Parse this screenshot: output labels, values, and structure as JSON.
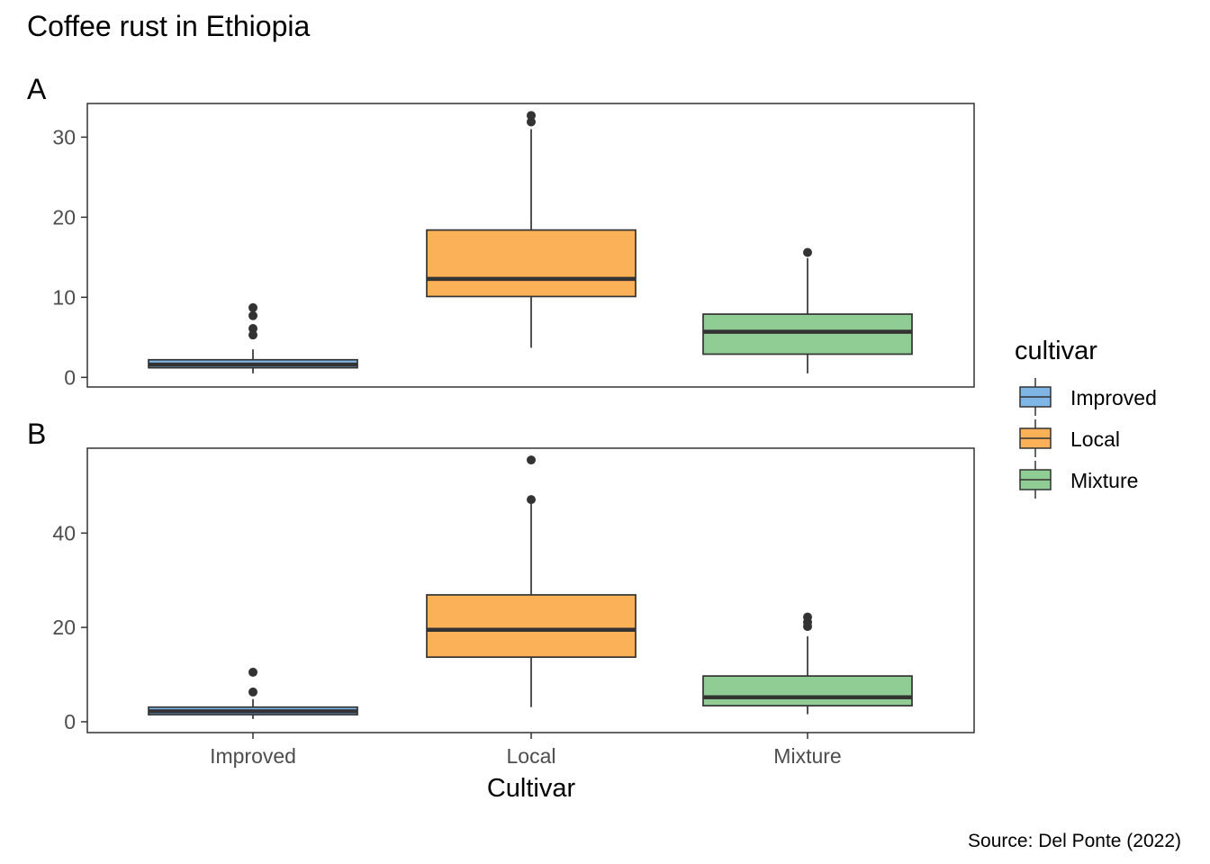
{
  "chart_data": {
    "type": "box",
    "title": "Coffee rust in Ethiopia",
    "caption": "Source: Del Ponte (2022)",
    "xlabel": "Cultivar",
    "categories": [
      "Improved",
      "Local",
      "Mixture"
    ],
    "legend": {
      "title": "cultivar",
      "position": "right",
      "entries": [
        "Improved",
        "Local",
        "Mixture"
      ]
    },
    "colors": {
      "Improved": "#7fb6e6",
      "Local": "#fbb158",
      "Mixture": "#8fcd95"
    },
    "panels": [
      {
        "tag": "A",
        "ylim": [
          -1.2,
          34.2
        ],
        "yticks": [
          0,
          10,
          20,
          30
        ],
        "grid": false,
        "boxes": [
          {
            "category": "Improved",
            "min": 0.5,
            "q1": 1.2,
            "median": 1.6,
            "q3": 2.2,
            "max": 3.5,
            "outliers": [
              5.3,
              6.1,
              7.7,
              8.7
            ]
          },
          {
            "category": "Local",
            "min": 3.7,
            "q1": 10.1,
            "median": 12.3,
            "q3": 18.4,
            "max": 31.0,
            "outliers": [
              31.9,
              32.7
            ]
          },
          {
            "category": "Mixture",
            "min": 0.5,
            "q1": 2.9,
            "median": 5.7,
            "q3": 7.9,
            "max": 14.9,
            "outliers": [
              15.6
            ]
          }
        ]
      },
      {
        "tag": "B",
        "ylim": [
          -2.3,
          58.0
        ],
        "yticks": [
          0,
          20,
          40
        ],
        "grid": false,
        "boxes": [
          {
            "category": "Improved",
            "min": 0.6,
            "q1": 1.5,
            "median": 2.2,
            "q3": 3.1,
            "max": 4.8,
            "outliers": [
              6.3,
              10.5
            ]
          },
          {
            "category": "Local",
            "min": 3.1,
            "q1": 13.7,
            "median": 19.5,
            "q3": 26.9,
            "max": 46.5,
            "outliers": [
              47.1,
              55.5
            ]
          },
          {
            "category": "Mixture",
            "min": 1.6,
            "q1": 3.4,
            "median": 5.2,
            "q3": 9.7,
            "max": 18.1,
            "outliers": [
              20.2,
              21.1,
              22.2
            ]
          }
        ]
      }
    ]
  }
}
